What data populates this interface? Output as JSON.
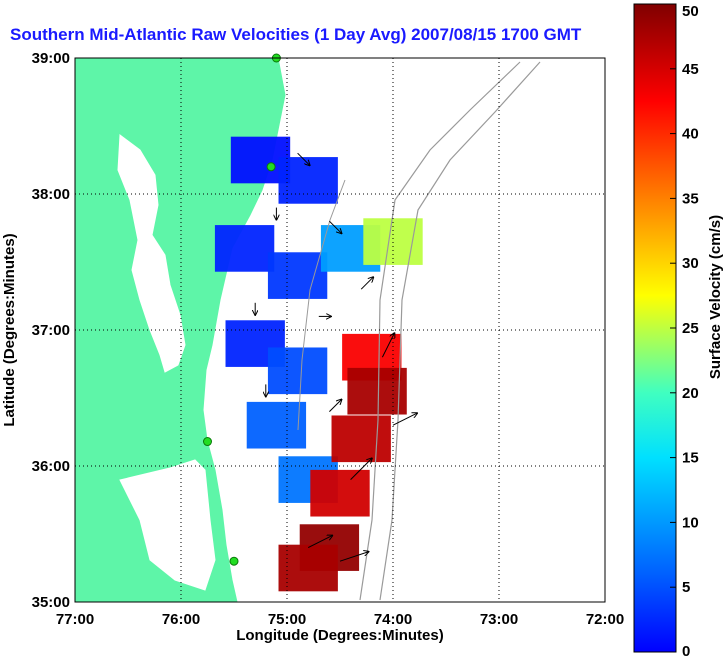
{
  "chart_data": {
    "type": "heatmap",
    "title": "Southern Mid-Atlantic Raw Velocities (1 Day Avg) 2007/08/15 1700 GMT",
    "xlabel": "Longitude (Degrees:Minutes)",
    "ylabel": "Latitude (Degrees:Minutes)",
    "colorbar_label": "Surface Velocity (cm/s)",
    "xlim": [
      -77,
      -72
    ],
    "ylim": [
      35,
      39
    ],
    "x_ticks": [
      {
        "value": -77,
        "label": "77:00"
      },
      {
        "value": -76,
        "label": "76:00"
      },
      {
        "value": -75,
        "label": "75:00"
      },
      {
        "value": -74,
        "label": "74:00"
      },
      {
        "value": -73,
        "label": "73:00"
      },
      {
        "value": -72,
        "label": "72:00"
      }
    ],
    "y_ticks": [
      {
        "value": 35,
        "label": "35:00"
      },
      {
        "value": 36,
        "label": "36:00"
      },
      {
        "value": 37,
        "label": "37:00"
      },
      {
        "value": 38,
        "label": "38:00"
      },
      {
        "value": 39,
        "label": "39:00"
      }
    ],
    "colorbar": {
      "min": 0,
      "max": 50,
      "ticks": [
        {
          "value": 0,
          "label": "0"
        },
        {
          "value": 5,
          "label": "5"
        },
        {
          "value": 10,
          "label": "10"
        },
        {
          "value": 15,
          "label": "15"
        },
        {
          "value": 20,
          "label": "20"
        },
        {
          "value": 25,
          "label": "25"
        },
        {
          "value": 30,
          "label": "30"
        },
        {
          "value": 35,
          "label": "35"
        },
        {
          "value": 40,
          "label": "40"
        },
        {
          "value": 45,
          "label": "45"
        },
        {
          "value": 50,
          "label": "50"
        }
      ],
      "colormap": "jet"
    },
    "grid": true,
    "land_color": "#5ef5a8",
    "ocean_color": "#ffffff",
    "contour_color": "#9a9a9a",
    "arrow_color": "#000000",
    "stations": [
      {
        "lon": -75.1,
        "lat": 39.0
      },
      {
        "lon": -75.15,
        "lat": 38.2
      },
      {
        "lon": -75.75,
        "lat": 36.18
      },
      {
        "lon": -75.5,
        "lat": 35.3
      }
    ],
    "velocity_patches": [
      {
        "lon": -75.25,
        "lat": 38.25,
        "speed": 7
      },
      {
        "lon": -74.8,
        "lat": 38.1,
        "speed": 8
      },
      {
        "lon": -75.4,
        "lat": 37.6,
        "speed": 8
      },
      {
        "lon": -74.9,
        "lat": 37.4,
        "speed": 9
      },
      {
        "lon": -75.3,
        "lat": 36.9,
        "speed": 8
      },
      {
        "lon": -74.9,
        "lat": 36.7,
        "speed": 10
      },
      {
        "lon": -75.1,
        "lat": 36.3,
        "speed": 11
      },
      {
        "lon": -74.8,
        "lat": 35.9,
        "speed": 12
      },
      {
        "lon": -74.4,
        "lat": 37.6,
        "speed": 14
      },
      {
        "lon": -74.0,
        "lat": 37.65,
        "speed": 28
      },
      {
        "lon": -74.2,
        "lat": 36.8,
        "speed": 44
      },
      {
        "lon": -74.15,
        "lat": 36.55,
        "speed": 48
      },
      {
        "lon": -74.3,
        "lat": 36.2,
        "speed": 47
      },
      {
        "lon": -74.5,
        "lat": 35.8,
        "speed": 46
      },
      {
        "lon": -74.6,
        "lat": 35.4,
        "speed": 49
      },
      {
        "lon": -74.8,
        "lat": 35.25,
        "speed": 48
      }
    ],
    "arrows": [
      {
        "lon": -74.9,
        "lat": 38.3,
        "u": 1,
        "v": -1
      },
      {
        "lon": -75.1,
        "lat": 37.9,
        "u": 0,
        "v": -1
      },
      {
        "lon": -74.6,
        "lat": 37.8,
        "u": 1,
        "v": -1
      },
      {
        "lon": -75.3,
        "lat": 37.2,
        "u": 0,
        "v": -1
      },
      {
        "lon": -74.7,
        "lat": 37.1,
        "u": 1,
        "v": 0
      },
      {
        "lon": -74.3,
        "lat": 37.3,
        "u": 1,
        "v": 1
      },
      {
        "lon": -75.2,
        "lat": 36.6,
        "u": 0,
        "v": -1
      },
      {
        "lon": -74.6,
        "lat": 36.4,
        "u": 1,
        "v": 1
      },
      {
        "lon": -74.1,
        "lat": 36.8,
        "u": 1,
        "v": 2
      },
      {
        "lon": -74.0,
        "lat": 36.3,
        "u": 2,
        "v": 1
      },
      {
        "lon": -74.4,
        "lat": 35.9,
        "u": 2,
        "v": 2
      },
      {
        "lon": -74.8,
        "lat": 35.4,
        "u": 2,
        "v": 1
      },
      {
        "lon": -74.5,
        "lat": 35.3,
        "u": 3,
        "v": 1
      }
    ]
  }
}
